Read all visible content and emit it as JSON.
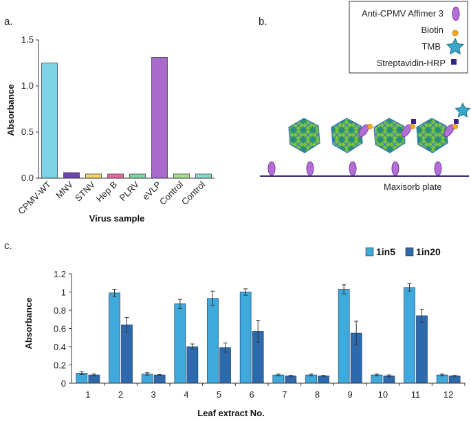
{
  "panels": {
    "a": "a.",
    "b": "b.",
    "c": "c."
  },
  "chart_data": [
    {
      "type": "bar",
      "title": "",
      "xlabel": "Virus sample",
      "ylabel": "Absorbance",
      "ylim": [
        0,
        1.5
      ],
      "yticks": [
        "0.0",
        "0.5",
        "1.0",
        "1.5"
      ],
      "categories": [
        "CPMV-WT",
        "MNV",
        "STNV",
        "Hep B",
        "PLRV",
        "eVLP",
        "Control",
        "Control"
      ],
      "values": [
        1.25,
        0.06,
        0.045,
        0.045,
        0.045,
        1.31,
        0.045,
        0.045
      ],
      "colors": [
        "#7dd3e6",
        "#6b44b0",
        "#f2d66a",
        "#e66aa6",
        "#7fd6a8",
        "#a86acc",
        "#a8df8a",
        "#8ad8d2"
      ]
    },
    {
      "type": "bar",
      "title": "",
      "xlabel": "Leaf extract No.",
      "ylabel": "Absorbance",
      "ylim": [
        0,
        1.2
      ],
      "yticks": [
        "0",
        "0.2",
        "0.4",
        "0.6",
        "0.8",
        "1",
        "1.2"
      ],
      "categories": [
        "1",
        "2",
        "3",
        "4",
        "5",
        "6",
        "7",
        "8",
        "9",
        "10",
        "11",
        "12"
      ],
      "series": [
        {
          "name": "1in5",
          "color": "#3fa9dc",
          "values": [
            0.11,
            0.99,
            0.1,
            0.87,
            0.93,
            1.0,
            0.09,
            0.09,
            1.03,
            0.09,
            1.05,
            0.09
          ],
          "errors": [
            0.015,
            0.04,
            0.015,
            0.05,
            0.08,
            0.035,
            0.01,
            0.01,
            0.05,
            0.01,
            0.04,
            0.01
          ]
        },
        {
          "name": "1in20",
          "color": "#2d6aad",
          "values": [
            0.09,
            0.64,
            0.09,
            0.4,
            0.39,
            0.57,
            0.08,
            0.08,
            0.55,
            0.08,
            0.74,
            0.08
          ],
          "errors": [
            0.01,
            0.08,
            0.005,
            0.03,
            0.05,
            0.12,
            0.005,
            0.005,
            0.13,
            0.01,
            0.07,
            0.005
          ]
        }
      ]
    }
  ],
  "diagram": {
    "legend": {
      "affimer": "Anti-CPMV Affimer 3",
      "biotin": "Biotin",
      "tmb": "TMB",
      "streptavidin": "Streptavidin-HRP"
    },
    "plate_label": "Maxisorb plate"
  }
}
